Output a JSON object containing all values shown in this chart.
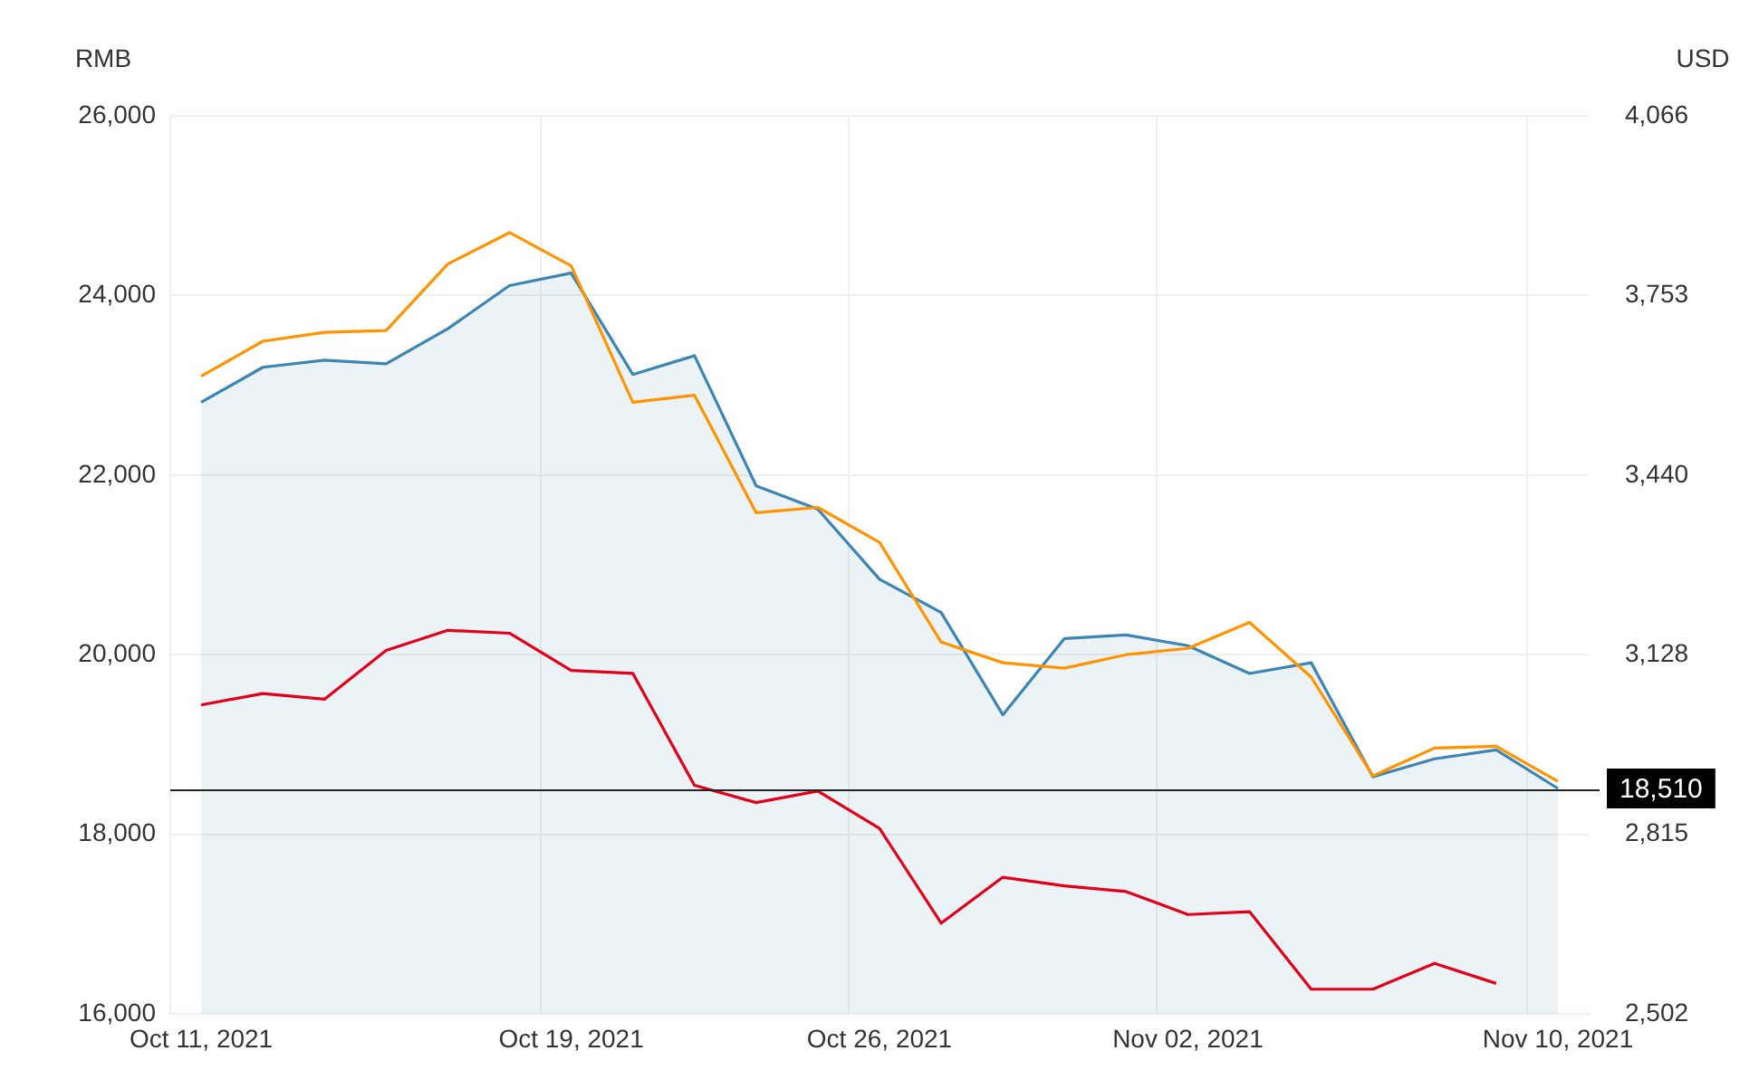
{
  "chart_data": {
    "type": "line",
    "ylabel": "RMB",
    "y2label": "USD",
    "categories": [
      "Oct 11, 2021",
      null,
      null,
      null,
      null,
      null,
      "Oct 19, 2021",
      null,
      null,
      null,
      null,
      "Oct 26, 2021",
      null,
      null,
      null,
      null,
      "Nov 02, 2021",
      null,
      null,
      null,
      null,
      null,
      "Nov 10, 2021"
    ],
    "series": [
      {
        "type": "area",
        "color": "#3d85b3",
        "values": [
          22810,
          23200,
          23280,
          23240,
          23630,
          24110,
          24250,
          23120,
          23330,
          21880,
          21620,
          20840,
          20470,
          19330,
          20180,
          20220,
          20100,
          19790,
          19910,
          18640,
          18840,
          18940,
          18510
        ]
      },
      {
        "color": "#ff9400",
        "values": [
          23100,
          23490,
          23590,
          23610,
          24350,
          24700,
          24330,
          22810,
          22890,
          21580,
          21640,
          21250,
          20140,
          19910,
          19850,
          20000,
          20070,
          20360,
          19750,
          18650,
          18960,
          18980,
          18590
        ]
      },
      {
        "color": "#e3001b",
        "axis": "y2",
        "values": [
          3040,
          3060,
          3050,
          3135,
          3170,
          3165,
          3100,
          3095,
          2900,
          2870,
          2890,
          2825,
          2660,
          2740,
          2725,
          2715,
          2675,
          2680,
          2545,
          2545,
          2590,
          2555,
          null
        ]
      }
    ],
    "ylim": [
      16000,
      26000
    ],
    "yticks": [
      {
        "value": 16000,
        "label": "16,000"
      },
      {
        "value": 18000,
        "label": "18,000"
      },
      {
        "value": 20000,
        "label": "20,000"
      },
      {
        "value": 22000,
        "label": "22,000"
      },
      {
        "value": 24000,
        "label": "24,000"
      },
      {
        "value": 26000,
        "label": "26,000"
      }
    ],
    "y2lim": [
      2502,
      4066
    ],
    "y2ticks": [
      {
        "value": 2502,
        "label": "2,502"
      },
      {
        "value": 2815,
        "label": "2,815"
      },
      {
        "value": 3128,
        "label": "3,128"
      },
      {
        "value": 3440,
        "label": "3,440"
      },
      {
        "value": 3753,
        "label": "3,753"
      },
      {
        "value": 4066,
        "label": "4,066"
      }
    ],
    "ref_lines": [
      {
        "axis": "y",
        "value": 18510,
        "label": "18,510",
        "color": "#222222"
      }
    ],
    "grid": true,
    "marker": "none"
  }
}
